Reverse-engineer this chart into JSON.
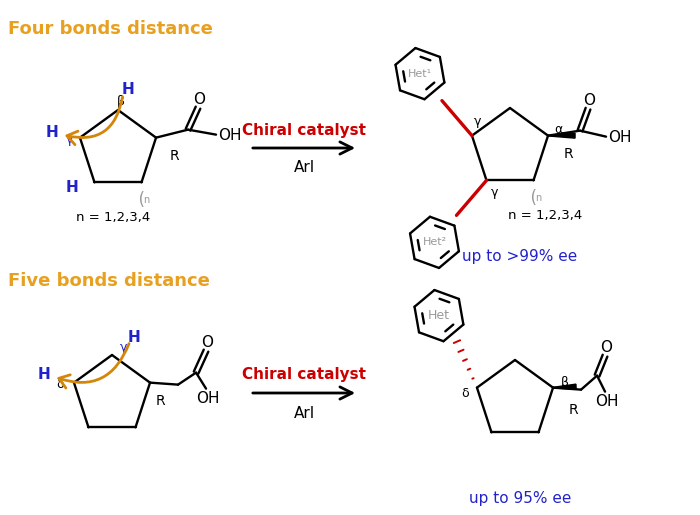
{
  "title_top": "Four bonds distance",
  "title_bottom": "Five bonds distance",
  "title_color": "#E8A020",
  "chiral_catalyst_color": "#CC0000",
  "chiral_catalyst_text": "Chiral catalyst",
  "arl_text": "ArI",
  "ee_top": "up to >99% ee",
  "ee_bottom": "up to 95% ee",
  "ee_color": "#2222CC",
  "bg_color": "#FFFFFF",
  "bond_color": "#000000",
  "blue_label_color": "#2222CC",
  "red_bond_color": "#CC0000",
  "gray_label_color": "#999999",
  "orange_arrow_color": "#D4860A",
  "figsize": [
    7.0,
    5.15
  ],
  "dpi": 100
}
